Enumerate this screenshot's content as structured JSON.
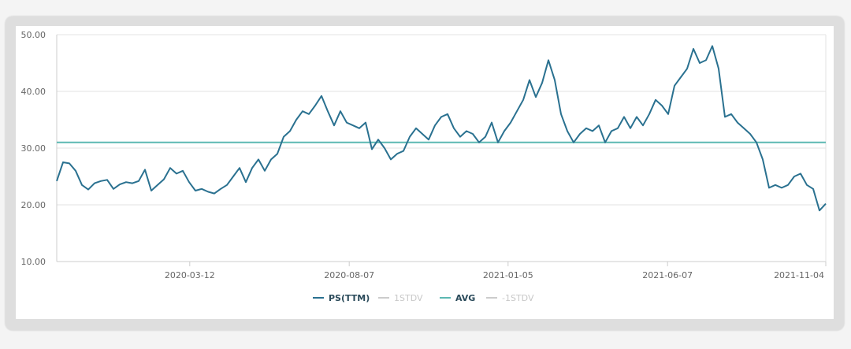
{
  "chart_data": {
    "type": "line",
    "title": "",
    "xlabel": "",
    "ylabel": "",
    "ylim": [
      10,
      50
    ],
    "yticks": [
      "10.00",
      "20.00",
      "30.00",
      "40.00",
      "50.00"
    ],
    "ytick_values": [
      10,
      20,
      30,
      40,
      50
    ],
    "xticks": [
      {
        "label": "2020-03-12",
        "index": 21.1
      },
      {
        "label": "2020-08-07",
        "index": 46.4
      },
      {
        "label": "2021-01-05",
        "index": 71.6
      },
      {
        "label": "2021-06-07",
        "index": 96.9
      },
      {
        "label": "2021-11-04",
        "index": 122
      }
    ],
    "grid": true,
    "legend_placement": "bottom-center",
    "legend": [
      {
        "name": "PS(TTM)",
        "color": "#2a7190",
        "active": true
      },
      {
        "name": "1STDV",
        "color": "#cccccc",
        "active": false
      },
      {
        "name": "AVG",
        "color": "#5cb8b2",
        "active": true
      },
      {
        "name": "-1STDV",
        "color": "#cccccc",
        "active": false
      }
    ],
    "avg": 31.0,
    "series": [
      {
        "name": "PS(TTM)",
        "color": "#2a7190",
        "values": [
          24.2,
          27.5,
          27.3,
          26.0,
          23.5,
          22.7,
          23.8,
          24.2,
          24.4,
          22.8,
          23.6,
          24.0,
          23.8,
          24.2,
          26.2,
          22.5,
          23.5,
          24.5,
          26.5,
          25.5,
          26.0,
          24.0,
          22.5,
          22.8,
          22.3,
          22.0,
          22.8,
          23.5,
          25.0,
          26.5,
          24.0,
          26.5,
          28.0,
          26.0,
          28.0,
          29.0,
          32.0,
          33.0,
          35.0,
          36.5,
          36.0,
          37.5,
          39.2,
          36.5,
          34.0,
          36.5,
          34.5,
          34.0,
          33.5,
          34.5,
          29.8,
          31.5,
          30.0,
          28.0,
          29.0,
          29.5,
          32.0,
          33.5,
          32.5,
          31.5,
          34.0,
          35.5,
          36.0,
          33.5,
          32.0,
          33.0,
          32.5,
          31.0,
          32.0,
          34.5,
          31.0,
          33.0,
          34.5,
          36.5,
          38.5,
          42.0,
          39.0,
          41.5,
          45.5,
          42.0,
          36.0,
          33.0,
          31.0,
          32.5,
          33.5,
          33.0,
          34.0,
          31.0,
          33.0,
          33.5,
          35.5,
          33.5,
          35.5,
          34.0,
          36.0,
          38.5,
          37.5,
          36.0,
          41.0,
          42.5,
          44.0,
          47.5,
          45.0,
          45.5,
          48.0,
          44.0,
          35.5,
          36.0,
          34.5,
          33.5,
          32.5,
          31.0,
          28.0,
          23.0,
          23.5,
          23.0,
          23.5,
          25.0,
          25.5,
          23.5,
          22.8,
          19.0,
          20.2
        ]
      }
    ]
  }
}
